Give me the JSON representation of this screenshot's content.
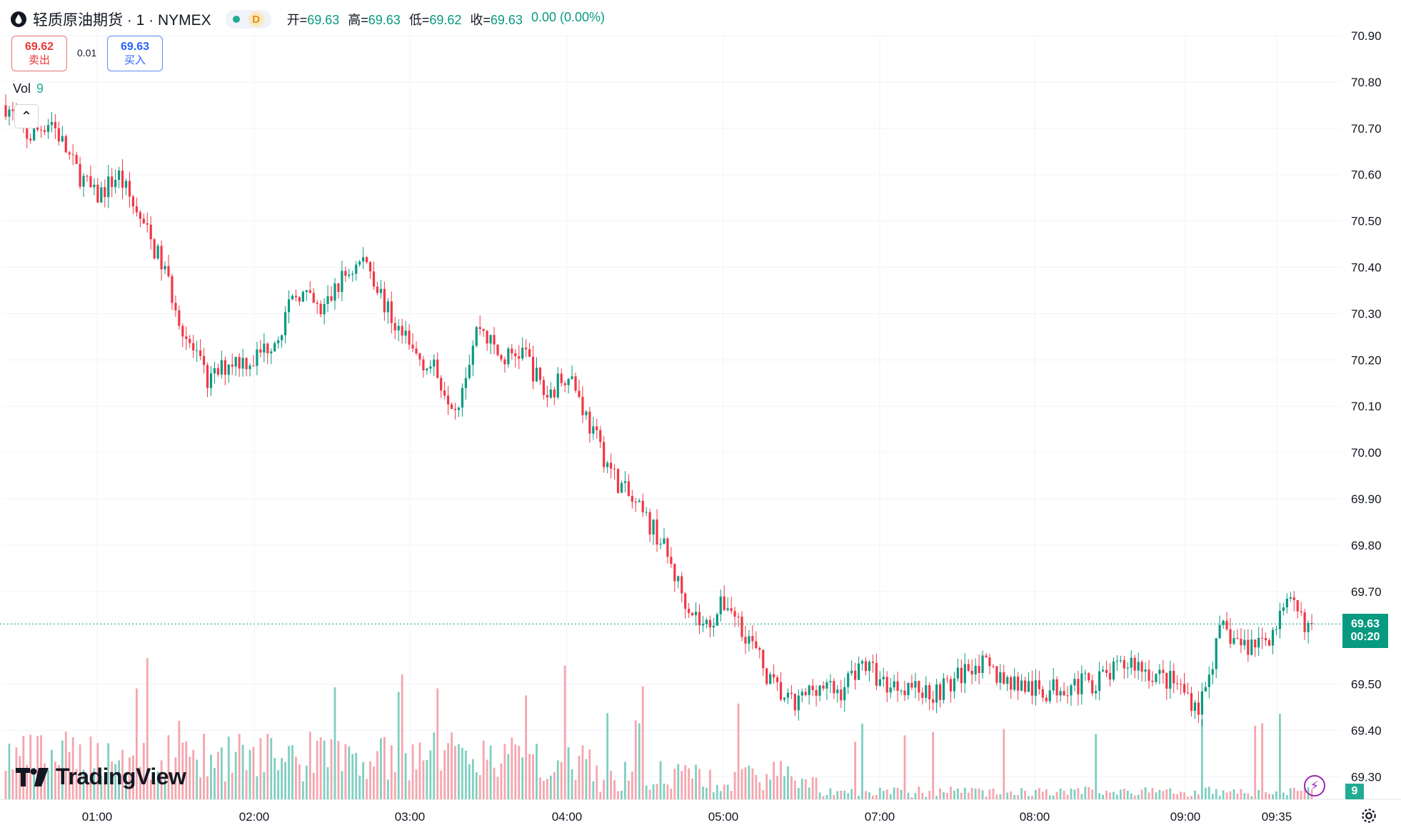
{
  "header": {
    "symbol_title": "轻质原油期货 · 1 · NYMEX",
    "interval_badge": "D",
    "ohlc": {
      "open_label": "开=",
      "open": "69.63",
      "high_label": "高=",
      "high": "69.63",
      "low_label": "低=",
      "low": "69.62",
      "close_label": "收=",
      "close": "69.63",
      "change": "0.00 (0.00%)"
    }
  },
  "trade": {
    "sell_price": "69.62",
    "sell_label": "卖出",
    "spread": "0.01",
    "buy_price": "69.63",
    "buy_label": "买入"
  },
  "volume": {
    "label": "Vol",
    "value": "9"
  },
  "branding": {
    "logo_text": "TradingView"
  },
  "price_tag": {
    "price": "69.63",
    "countdown": "00:20"
  },
  "colors": {
    "up": "#089981",
    "down": "#f23645",
    "vol_up": "#7fcfc0",
    "vol_down": "#f5a5ad"
  },
  "icons": [
    "drop-icon",
    "chevron-up-icon",
    "lightning-icon",
    "gear-icon",
    "tradingview-logo-icon"
  ],
  "chart_data": {
    "type": "candlestick",
    "interval": "1 minute",
    "y_axis": {
      "ticks": [
        "70.90",
        "70.80",
        "70.70",
        "70.60",
        "70.50",
        "70.40",
        "70.30",
        "70.20",
        "70.10",
        "70.00",
        "69.90",
        "69.80",
        "69.70",
        "69.63",
        "69.50",
        "69.40",
        "69.30"
      ],
      "range": [
        69.27,
        70.95
      ]
    },
    "x_axis": {
      "ticks": [
        "01:00",
        "02:00",
        "03:00",
        "04:00",
        "05:00",
        "07:00",
        "08:00",
        "09:00",
        "09:35"
      ]
    },
    "last_price": 69.63,
    "path": [
      [
        0,
        70.75
      ],
      [
        1,
        70.68
      ],
      [
        2,
        70.72
      ],
      [
        3,
        70.62
      ],
      [
        4,
        70.55
      ],
      [
        5,
        70.6
      ],
      [
        6,
        70.5
      ],
      [
        7,
        70.4
      ],
      [
        8,
        70.25
      ],
      [
        9,
        70.15
      ],
      [
        10,
        70.2
      ],
      [
        11,
        70.2
      ],
      [
        12,
        70.25
      ],
      [
        13,
        70.35
      ],
      [
        14,
        70.3
      ],
      [
        15,
        70.38
      ],
      [
        16,
        70.42
      ],
      [
        17,
        70.3
      ],
      [
        18,
        70.22
      ],
      [
        19,
        70.18
      ],
      [
        20,
        70.1
      ],
      [
        21,
        70.28
      ],
      [
        22,
        70.2
      ],
      [
        23,
        70.22
      ],
      [
        24,
        70.12
      ],
      [
        25,
        70.18
      ],
      [
        26,
        70.05
      ],
      [
        27,
        69.95
      ],
      [
        28,
        69.88
      ],
      [
        29,
        69.82
      ],
      [
        30,
        69.7
      ],
      [
        31,
        69.62
      ],
      [
        32,
        69.68
      ],
      [
        33,
        69.6
      ],
      [
        34,
        69.5
      ],
      [
        35,
        69.45
      ],
      [
        36,
        69.5
      ],
      [
        37,
        69.48
      ],
      [
        38,
        69.55
      ],
      [
        39,
        69.5
      ],
      [
        40,
        69.5
      ],
      [
        41,
        69.48
      ],
      [
        42,
        69.5
      ],
      [
        43,
        69.55
      ],
      [
        44,
        69.52
      ],
      [
        45,
        69.5
      ],
      [
        46,
        69.48
      ],
      [
        47,
        69.5
      ],
      [
        48,
        69.5
      ],
      [
        49,
        69.52
      ],
      [
        50,
        69.55
      ],
      [
        51,
        69.52
      ],
      [
        52,
        69.5
      ],
      [
        53,
        69.45
      ],
      [
        54,
        69.62
      ],
      [
        55,
        69.58
      ],
      [
        56,
        69.6
      ],
      [
        57,
        69.67
      ],
      [
        58,
        69.62
      ]
    ],
    "notes": "Intraday 1-minute candles for light crude futures, price declines from ~70.78 to ~69.40 then recovers to 69.63."
  }
}
